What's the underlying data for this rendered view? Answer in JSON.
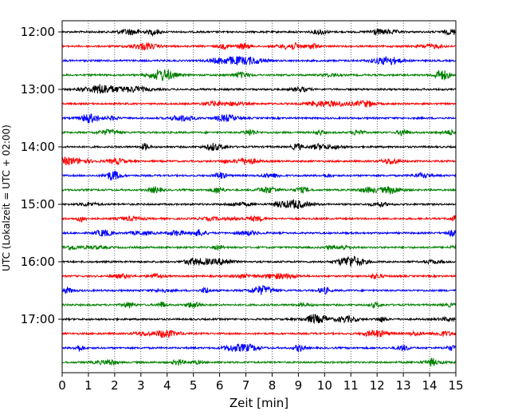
{
  "chart_data": {
    "type": "line",
    "subtype": "helicorder",
    "xlabel": "Zeit  [min]",
    "ylabel": "UTC (Lokalzeit = UTC + 02:00)",
    "xlim": [
      0,
      15
    ],
    "x_ticks": [
      "0",
      "1",
      "2",
      "3",
      "4",
      "5",
      "6",
      "7",
      "8",
      "9",
      "10",
      "11",
      "12",
      "13",
      "14",
      "15"
    ],
    "y_tick_labels": [
      "12:00",
      "13:00",
      "14:00",
      "15:00",
      "16:00",
      "17:00"
    ],
    "trace_start_times": [
      "12:00",
      "12:15",
      "12:30",
      "12:45",
      "13:00",
      "13:15",
      "13:30",
      "13:45",
      "14:00",
      "14:15",
      "14:30",
      "14:45",
      "15:00",
      "15:15",
      "15:30",
      "15:45",
      "16:00",
      "16:15",
      "16:30",
      "16:45",
      "17:00",
      "17:15",
      "17:30",
      "17:45"
    ],
    "trace_minutes_per_line": 15,
    "trace_colors": [
      "#000000",
      "#ff0000",
      "#0000ff",
      "#008000"
    ],
    "grid": "vertical dotted at each minute"
  }
}
